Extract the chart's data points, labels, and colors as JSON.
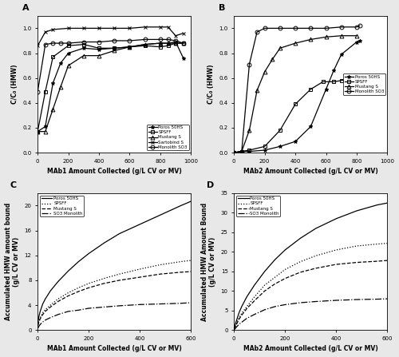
{
  "panel_A": {
    "title": "A",
    "xlabel": "MAb1 Amount Collected (g/L CV or MV)",
    "ylabel": "C/C₀ (HMW)",
    "xlim": [
      0,
      1000
    ],
    "ylim": [
      0.0,
      1.1
    ],
    "yticks": [
      0.0,
      0.2,
      0.4,
      0.6,
      0.8,
      1.0
    ],
    "series": {
      "Poros 50HS": {
        "x": [
          0,
          50,
          100,
          150,
          200,
          300,
          400,
          500,
          600,
          700,
          800,
          850,
          900,
          950
        ],
        "y": [
          0.17,
          0.21,
          0.56,
          0.72,
          0.8,
          0.84,
          0.83,
          0.84,
          0.85,
          0.87,
          0.88,
          0.88,
          0.89,
          0.76
        ],
        "marker": "*",
        "linestyle": "-",
        "label": "Poros 50HS"
      },
      "SPSFF": {
        "x": [
          0,
          50,
          100,
          200,
          300,
          400,
          500,
          600,
          700,
          800,
          850,
          900,
          950
        ],
        "y": [
          0.17,
          0.49,
          0.77,
          0.86,
          0.87,
          0.84,
          0.84,
          0.85,
          0.86,
          0.85,
          0.86,
          0.88,
          0.88
        ],
        "marker": "s",
        "linestyle": "-",
        "label": "SPSFF"
      },
      "Mustang S": {
        "x": [
          0,
          50,
          100,
          150,
          200,
          300,
          400,
          500,
          600,
          700,
          800,
          850,
          900,
          950
        ],
        "y": [
          0.17,
          0.17,
          0.35,
          0.53,
          0.7,
          0.78,
          0.78,
          0.82,
          0.85,
          0.87,
          0.88,
          0.88,
          0.88,
          0.88
        ],
        "marker": "^",
        "linestyle": "-",
        "label": "Mustang S"
      },
      "Sartobind S": {
        "x": [
          0,
          50,
          100,
          200,
          300,
          400,
          500,
          600,
          700,
          800,
          850,
          900,
          950
        ],
        "y": [
          0.86,
          0.97,
          0.99,
          1.0,
          1.0,
          1.0,
          1.0,
          1.0,
          1.01,
          1.01,
          1.01,
          0.94,
          0.96
        ],
        "marker": "x",
        "linestyle": "-",
        "label": "Sartobind S"
      },
      "Monolith SO3": {
        "x": [
          0,
          50,
          100,
          150,
          200,
          300,
          400,
          500,
          600,
          700,
          800,
          850,
          900,
          950
        ],
        "y": [
          0.49,
          0.87,
          0.88,
          0.88,
          0.88,
          0.89,
          0.89,
          0.9,
          0.9,
          0.91,
          0.91,
          0.91,
          0.9,
          0.88
        ],
        "marker": "o",
        "linestyle": "-",
        "label": "Monolith SO3"
      }
    }
  },
  "panel_B": {
    "title": "B",
    "xlabel": "MAb2 Amount Collected (g/L CV or MV)",
    "ylabel": "C/C₀ (HMW)",
    "xlim": [
      0,
      1000
    ],
    "ylim": [
      0.0,
      1.1
    ],
    "yticks": [
      0.0,
      0.2,
      0.4,
      0.6,
      0.8,
      1.0
    ],
    "series": {
      "Poros 50HS": {
        "x": [
          0,
          50,
          100,
          200,
          300,
          400,
          500,
          600,
          650,
          700,
          800,
          820
        ],
        "y": [
          0.0,
          0.01,
          0.01,
          0.02,
          0.05,
          0.09,
          0.21,
          0.51,
          0.66,
          0.79,
          0.89,
          0.9
        ],
        "marker": "*",
        "linestyle": "-",
        "label": "Poros 50HS"
      },
      "SPSFF": {
        "x": [
          0,
          50,
          100,
          200,
          300,
          400,
          500,
          580,
          650,
          700,
          800,
          820
        ],
        "y": [
          0.0,
          0.01,
          0.02,
          0.05,
          0.18,
          0.39,
          0.51,
          0.57,
          0.57,
          0.58,
          0.6,
          0.6
        ],
        "marker": "s",
        "linestyle": "-",
        "label": "SPSFF"
      },
      "Mustang S": {
        "x": [
          0,
          50,
          100,
          150,
          200,
          250,
          300,
          400,
          500,
          600,
          700,
          800
        ],
        "y": [
          0.0,
          0.01,
          0.18,
          0.5,
          0.65,
          0.75,
          0.84,
          0.88,
          0.91,
          0.93,
          0.94,
          0.94
        ],
        "marker": "^",
        "linestyle": "-",
        "label": "Mustang S"
      },
      "Monolith SO3": {
        "x": [
          0,
          50,
          100,
          150,
          200,
          300,
          400,
          500,
          600,
          700,
          800,
          820
        ],
        "y": [
          0.0,
          0.01,
          0.71,
          0.97,
          1.0,
          1.0,
          1.0,
          1.0,
          1.0,
          1.01,
          1.01,
          1.02
        ],
        "marker": "o",
        "linestyle": "-",
        "label": "Monolith SO3"
      }
    }
  },
  "panel_C": {
    "title": "C",
    "xlabel": "MAb1 Amount Collected (g/L CV or MV)",
    "ylabel": "Accumulated HMW amount bound\n(g/L CV or MV)",
    "xlim": [
      0,
      600
    ],
    "ylim": [
      0,
      22
    ],
    "yticks": [
      0,
      4,
      8,
      12,
      16,
      20
    ],
    "series": {
      "Poros 50HS": {
        "x": [
          1,
          5,
          10,
          20,
          30,
          50,
          80,
          120,
          160,
          200,
          260,
          320,
          400,
          480,
          560,
          600
        ],
        "y": [
          1.2,
          2.2,
          3.0,
          4.2,
          5.0,
          6.3,
          7.8,
          9.5,
          11.0,
          12.3,
          14.0,
          15.5,
          17.0,
          18.5,
          20.0,
          20.7
        ],
        "linestyle": "-",
        "label": "Poros 50HS"
      },
      "SPSFF": {
        "x": [
          1,
          5,
          10,
          20,
          30,
          50,
          80,
          120,
          160,
          200,
          260,
          320,
          400,
          480,
          560,
          600
        ],
        "y": [
          0.8,
          1.5,
          2.0,
          2.8,
          3.3,
          4.0,
          5.0,
          6.0,
          6.8,
          7.5,
          8.3,
          9.0,
          9.8,
          10.5,
          11.0,
          11.2
        ],
        "linestyle": ":",
        "label": "SPSFF"
      },
      "Mustang S": {
        "x": [
          1,
          5,
          10,
          20,
          30,
          50,
          80,
          120,
          160,
          200,
          260,
          320,
          400,
          480,
          560,
          600
        ],
        "y": [
          0.7,
          1.3,
          1.8,
          2.5,
          3.0,
          3.7,
          4.6,
          5.5,
          6.2,
          6.8,
          7.5,
          8.0,
          8.5,
          9.0,
          9.3,
          9.4
        ],
        "linestyle": "--",
        "label": "Mustang S"
      },
      "SO3 Monolith": {
        "x": [
          1,
          5,
          10,
          20,
          30,
          50,
          80,
          120,
          160,
          200,
          260,
          320,
          400,
          480,
          560,
          600
        ],
        "y": [
          0.3,
          0.6,
          0.9,
          1.3,
          1.6,
          2.0,
          2.5,
          3.0,
          3.2,
          3.5,
          3.7,
          3.9,
          4.1,
          4.2,
          4.3,
          4.4
        ],
        "linestyle": "-.",
        "label": "SO3 Monolith"
      }
    }
  },
  "panel_D": {
    "title": "D",
    "xlabel": "MAb2 Amount Collected (g/L CV or MV)",
    "ylabel": "Accumulated HMW Amount Bound\n(g/L CV or MV)",
    "xlim": [
      0,
      600
    ],
    "ylim": [
      0,
      35
    ],
    "yticks": [
      0,
      5,
      10,
      15,
      20,
      25,
      30,
      35
    ],
    "series": {
      "Poros 50HS": {
        "x": [
          1,
          5,
          10,
          20,
          30,
          50,
          80,
          120,
          160,
          200,
          260,
          320,
          400,
          480,
          560,
          600
        ],
        "y": [
          0.5,
          1.5,
          2.5,
          4.5,
          6.0,
          8.5,
          11.5,
          15.0,
          18.0,
          20.5,
          23.5,
          26.0,
          28.5,
          30.5,
          32.0,
          32.5
        ],
        "linestyle": "-",
        "label": "Poros 50HS"
      },
      "SPSFF": {
        "x": [
          1,
          5,
          10,
          20,
          30,
          50,
          80,
          120,
          160,
          200,
          260,
          320,
          400,
          480,
          560,
          600
        ],
        "y": [
          0.3,
          1.0,
          1.8,
          3.2,
          4.3,
          6.0,
          8.5,
          11.5,
          13.5,
          15.5,
          17.5,
          19.0,
          20.5,
          21.5,
          22.0,
          22.2
        ],
        "linestyle": ":",
        "label": "SPSFF"
      },
      "Mustang S": {
        "x": [
          1,
          5,
          10,
          20,
          30,
          50,
          80,
          120,
          160,
          200,
          260,
          320,
          400,
          480,
          560,
          600
        ],
        "y": [
          0.2,
          0.8,
          1.5,
          2.8,
          3.8,
          5.5,
          7.5,
          10.0,
          11.8,
          13.2,
          14.8,
          15.8,
          16.8,
          17.3,
          17.6,
          17.8
        ],
        "linestyle": "--",
        "label": "Mustang S"
      },
      "SO3 Monolith": {
        "x": [
          1,
          5,
          10,
          20,
          30,
          50,
          80,
          120,
          160,
          200,
          260,
          320,
          400,
          480,
          560,
          600
        ],
        "y": [
          0.1,
          0.4,
          0.8,
          1.5,
          2.0,
          3.0,
          4.0,
          5.2,
          6.0,
          6.5,
          7.0,
          7.3,
          7.6,
          7.8,
          7.9,
          8.0
        ],
        "linestyle": "-.",
        "label": "SO3 Monolith"
      }
    }
  },
  "bg_color": "#e8e8e8",
  "marker_size": 3.5,
  "linewidth": 0.9,
  "font_size_label": 5.5,
  "font_size_tick": 5,
  "font_size_legend": 4,
  "font_size_title": 8
}
